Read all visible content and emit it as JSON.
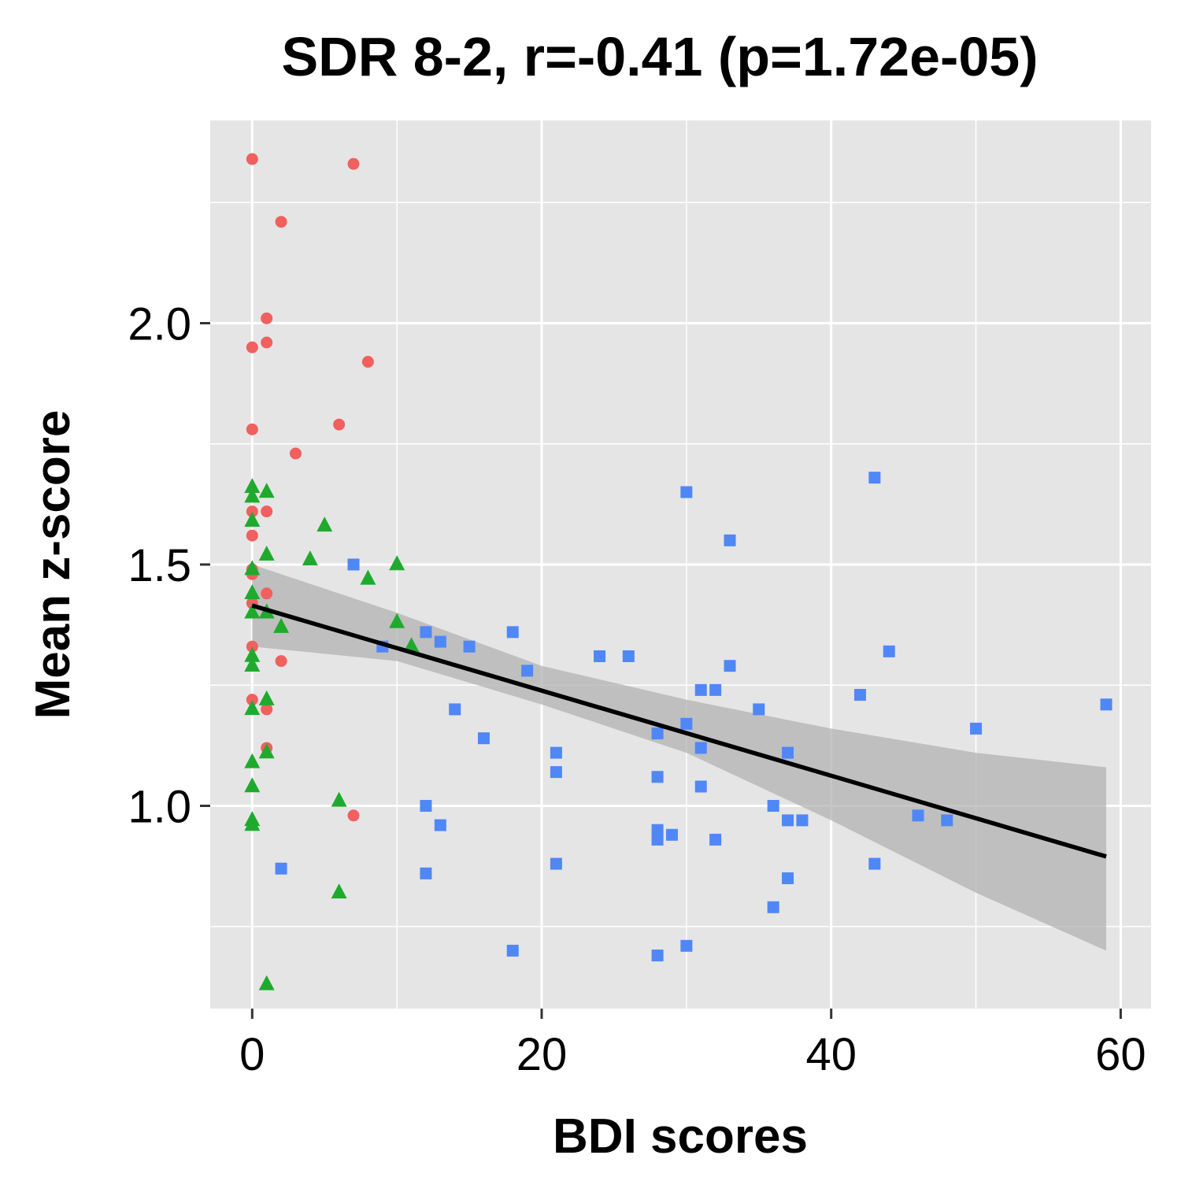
{
  "chart_data": {
    "type": "scatter",
    "title": "SDR 8-2, r=-0.41 (p=1.72e-05)",
    "xlabel": "BDI scores",
    "ylabel": "Mean z-score",
    "xlim": [
      -2.9,
      62.1
    ],
    "ylim": [
      0.58,
      2.42
    ],
    "x_ticks": [
      0,
      20,
      40,
      60
    ],
    "x_tick_labels": [
      "0",
      "20",
      "40",
      "60"
    ],
    "y_ticks": [
      1.0,
      1.5,
      2.0
    ],
    "y_tick_labels": [
      "1.0",
      "1.5",
      "2.0"
    ],
    "grid": true,
    "legend": "none",
    "colors": {
      "panel": "#e5e5e5",
      "grid": "#ffffff",
      "series_red": "#f0605e",
      "series_green": "#1faa2e",
      "series_blue": "#4f87f7",
      "fit_line": "#000000",
      "confidence_band": "#b0b0b0"
    },
    "series": [
      {
        "marker": "circle",
        "color": "#f0605e",
        "points": [
          [
            0,
            2.34
          ],
          [
            7,
            2.33
          ],
          [
            2,
            2.21
          ],
          [
            1,
            2.01
          ],
          [
            0,
            1.95
          ],
          [
            1,
            1.96
          ],
          [
            8,
            1.92
          ],
          [
            0,
            1.78
          ],
          [
            6,
            1.79
          ],
          [
            3,
            1.73
          ],
          [
            0,
            1.61
          ],
          [
            1,
            1.61
          ],
          [
            0,
            1.56
          ],
          [
            0,
            1.49
          ],
          [
            0,
            1.48
          ],
          [
            1,
            1.44
          ],
          [
            0,
            1.42
          ],
          [
            0,
            1.33
          ],
          [
            2,
            1.3
          ],
          [
            0,
            1.22
          ],
          [
            1,
            1.2
          ],
          [
            1,
            1.12
          ],
          [
            7,
            0.98
          ]
        ]
      },
      {
        "marker": "triangle",
        "color": "#1faa2e",
        "points": [
          [
            0,
            1.66
          ],
          [
            0,
            1.64
          ],
          [
            1,
            1.65
          ],
          [
            0,
            1.59
          ],
          [
            5,
            1.58
          ],
          [
            1,
            1.52
          ],
          [
            4,
            1.51
          ],
          [
            10,
            1.5
          ],
          [
            0,
            1.49
          ],
          [
            8,
            1.47
          ],
          [
            0,
            1.44
          ],
          [
            0,
            1.4
          ],
          [
            1,
            1.4
          ],
          [
            10,
            1.38
          ],
          [
            2,
            1.37
          ],
          [
            11,
            1.33
          ],
          [
            0,
            1.31
          ],
          [
            0,
            1.29
          ],
          [
            1,
            1.22
          ],
          [
            0,
            1.2
          ],
          [
            1,
            1.11
          ],
          [
            0,
            1.09
          ],
          [
            0,
            1.04
          ],
          [
            6,
            1.01
          ],
          [
            0,
            0.97
          ],
          [
            0,
            0.96
          ],
          [
            6,
            0.82
          ],
          [
            1,
            0.63
          ]
        ]
      },
      {
        "marker": "square",
        "color": "#4f87f7",
        "points": [
          [
            7,
            1.5
          ],
          [
            9,
            1.33
          ],
          [
            12,
            1.36
          ],
          [
            13,
            1.34
          ],
          [
            15,
            1.33
          ],
          [
            18,
            1.36
          ],
          [
            19,
            1.28
          ],
          [
            14,
            1.2
          ],
          [
            16,
            1.14
          ],
          [
            12,
            1.0
          ],
          [
            13,
            0.96
          ],
          [
            12,
            0.86
          ],
          [
            2,
            0.87
          ],
          [
            18,
            0.7
          ],
          [
            21,
            1.11
          ],
          [
            21,
            1.07
          ],
          [
            21,
            0.88
          ],
          [
            24,
            1.31
          ],
          [
            26,
            1.31
          ],
          [
            28,
            1.15
          ],
          [
            28,
            1.06
          ],
          [
            28,
            0.95
          ],
          [
            28,
            0.93
          ],
          [
            28,
            0.69
          ],
          [
            29,
            0.94
          ],
          [
            30,
            1.65
          ],
          [
            30,
            1.17
          ],
          [
            30,
            0.71
          ],
          [
            31,
            1.24
          ],
          [
            31,
            1.12
          ],
          [
            31,
            1.04
          ],
          [
            32,
            1.24
          ],
          [
            32,
            0.93
          ],
          [
            33,
            1.55
          ],
          [
            33,
            1.29
          ],
          [
            35,
            1.2
          ],
          [
            36,
            1.0
          ],
          [
            36,
            0.79
          ],
          [
            37,
            1.11
          ],
          [
            37,
            0.97
          ],
          [
            37,
            0.85
          ],
          [
            38,
            0.97
          ],
          [
            42,
            1.23
          ],
          [
            43,
            1.68
          ],
          [
            43,
            0.88
          ],
          [
            44,
            1.32
          ],
          [
            46,
            0.98
          ],
          [
            48,
            0.97
          ],
          [
            50,
            1.16
          ],
          [
            59,
            1.21
          ]
        ]
      }
    ],
    "fit": {
      "x": [
        0,
        59
      ],
      "y": [
        1.415,
        0.895
      ]
    },
    "confidence_band": {
      "x": [
        0,
        10,
        20,
        30,
        40,
        50,
        59
      ],
      "lower": [
        1.33,
        1.3,
        1.21,
        1.11,
        0.97,
        0.82,
        0.7
      ],
      "upper": [
        1.5,
        1.4,
        1.29,
        1.22,
        1.16,
        1.11,
        1.08
      ]
    }
  }
}
